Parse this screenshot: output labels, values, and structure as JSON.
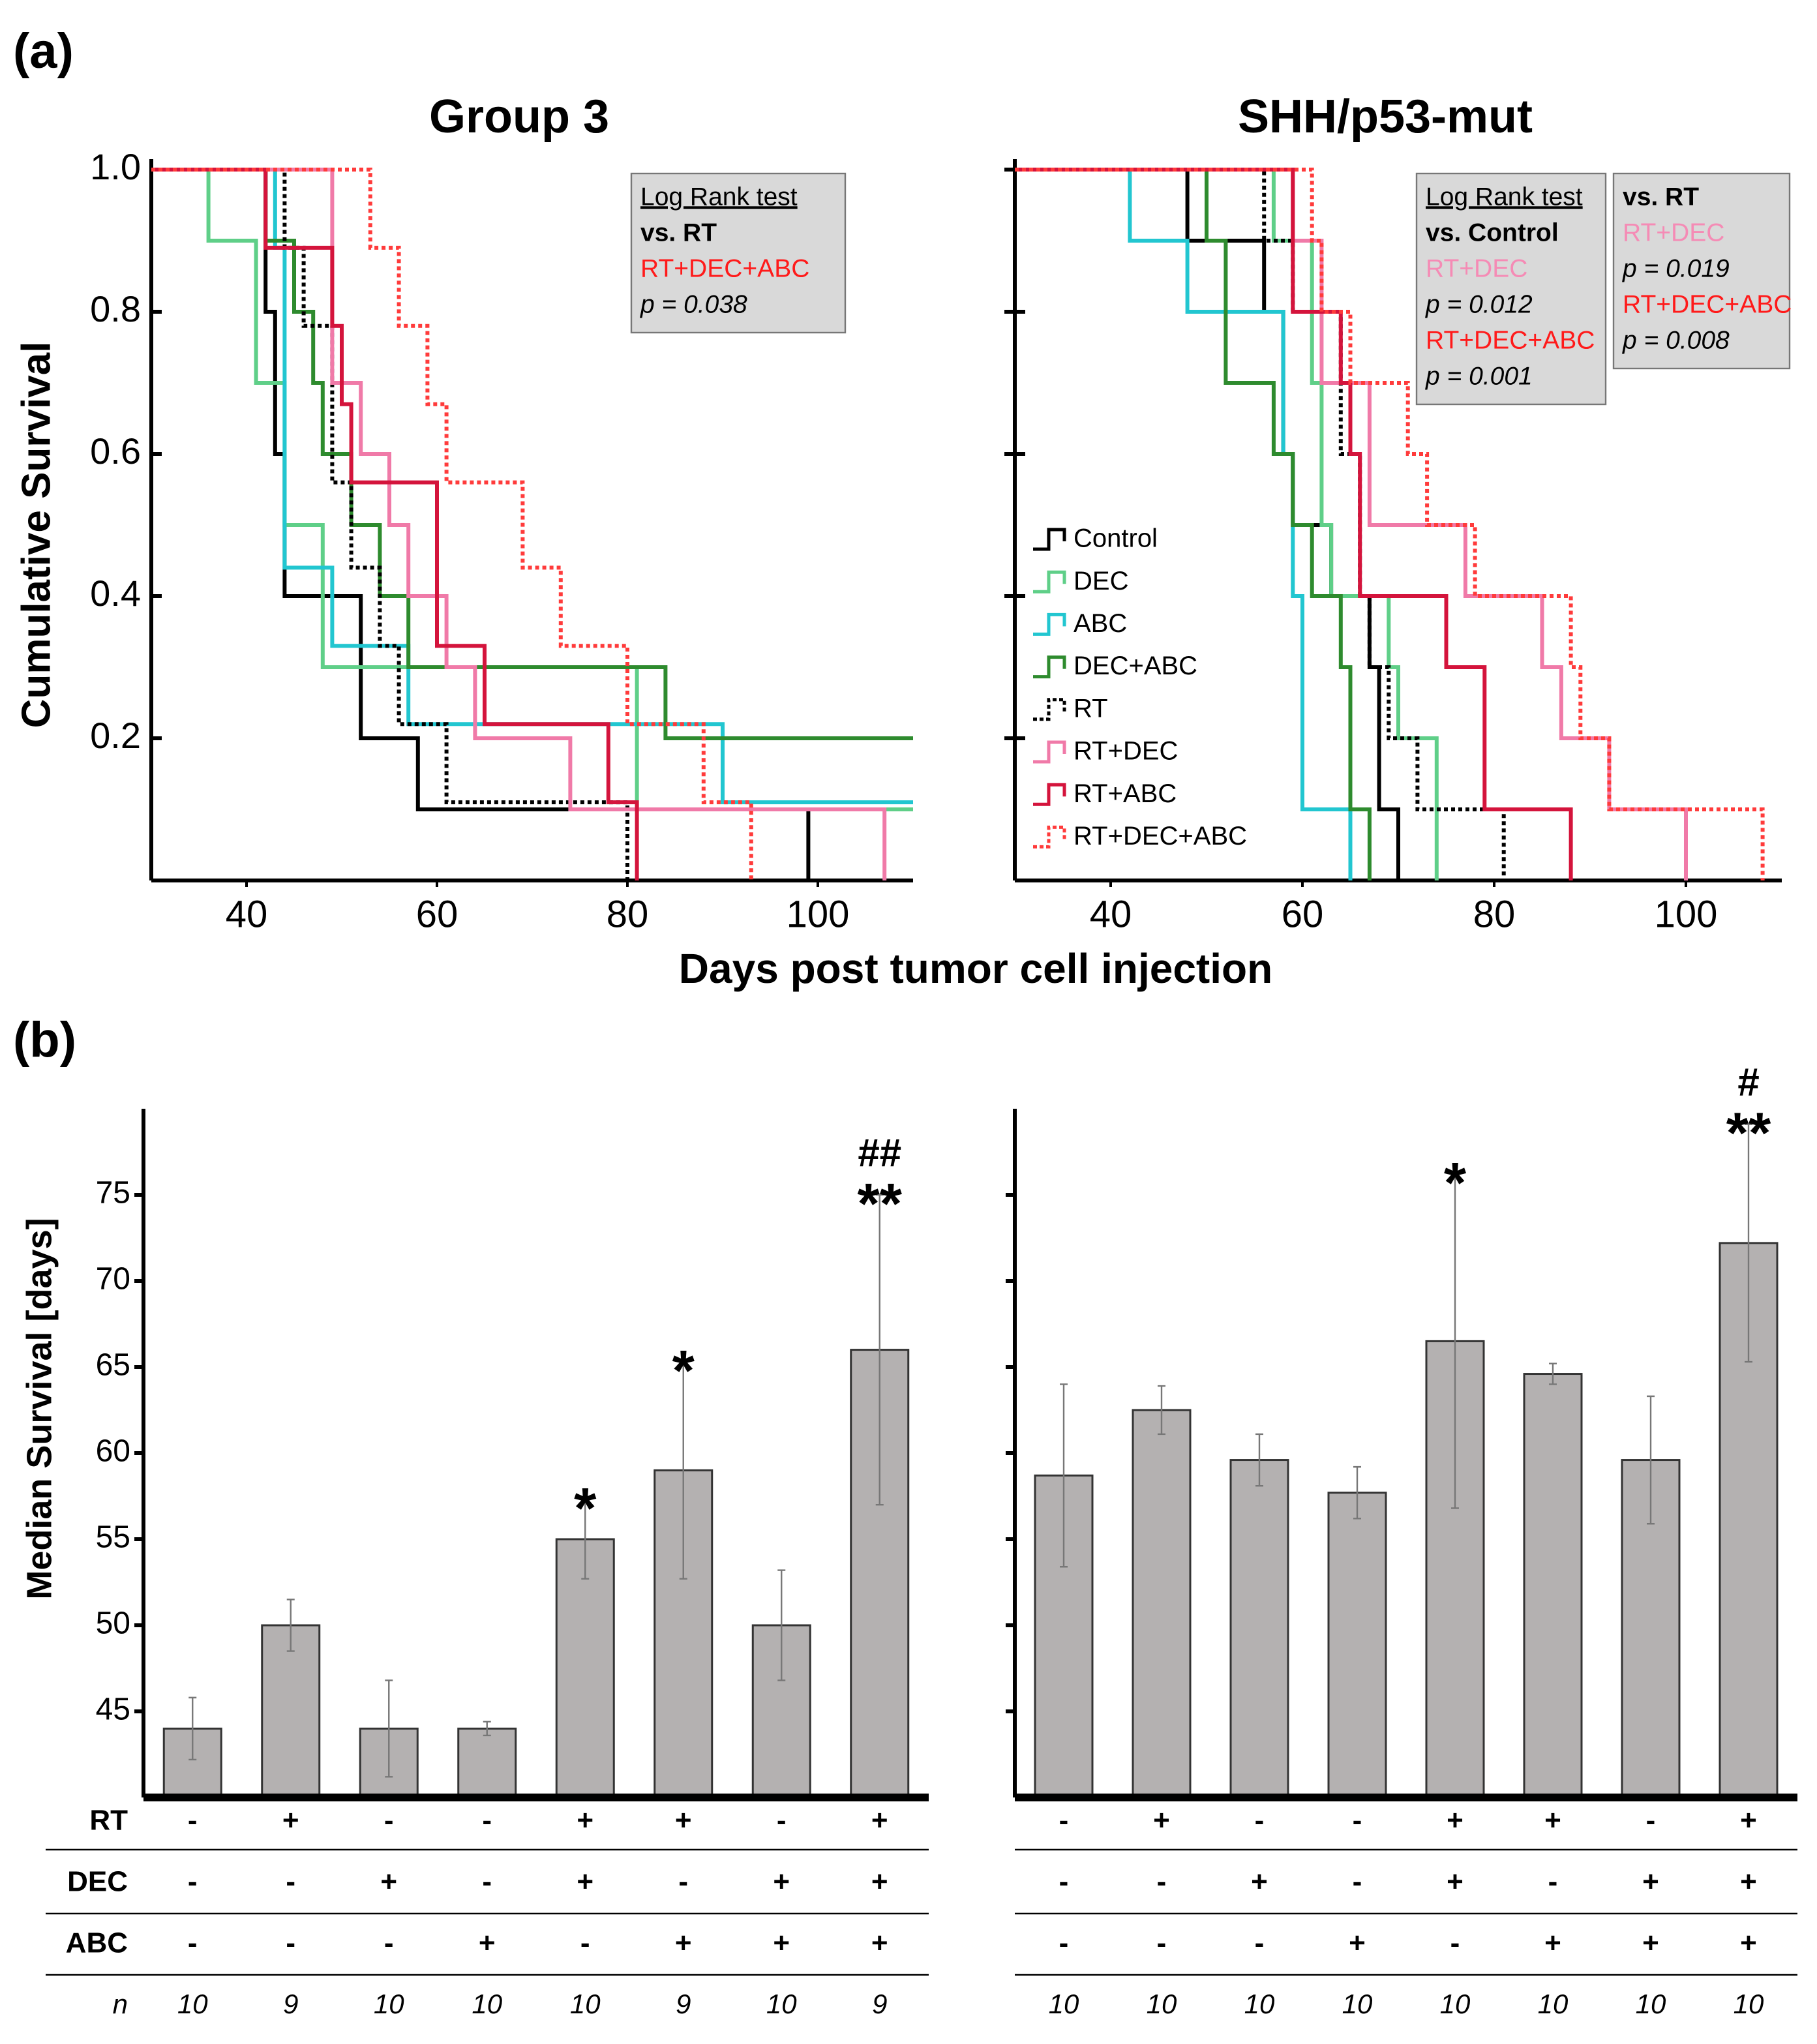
{
  "panel_labels": [
    "(a)",
    "(b)"
  ],
  "chart_data": [
    {
      "type": "line",
      "step": "post",
      "title": "Group 3",
      "ylabel": "Cumulative Survival",
      "xlabel": "Days post tumor cell injection",
      "xlim": [
        30,
        110
      ],
      "xticks": [
        40,
        60,
        80,
        100
      ],
      "ylim": [
        0,
        1
      ],
      "yticks": [
        0.2,
        0.4,
        0.6,
        0.8,
        {
          "value": 1,
          "label": "1.0"
        }
      ],
      "ytick_labels": true,
      "series": [
        {
          "color": "#000000",
          "dash": false,
          "x": [
            30,
            42,
            43,
            44,
            52,
            58,
            99
          ],
          "values": [
            1,
            0.8,
            0.6,
            0.4,
            0.2,
            0.1,
            0
          ]
        },
        {
          "color": "#5fcf88",
          "dash": false,
          "x": [
            30,
            36,
            41,
            44,
            48,
            81
          ],
          "values": [
            1,
            0.9,
            0.7,
            0.5,
            0.3,
            0.1
          ]
        },
        {
          "color": "#22c6d0",
          "dash": false,
          "x": [
            30,
            43,
            44,
            49,
            57,
            90
          ],
          "values": [
            1,
            0.89,
            0.44,
            0.33,
            0.22,
            0.11
          ]
        },
        {
          "color": "#2e8b2e",
          "dash": false,
          "x": [
            30,
            42,
            45,
            47,
            48,
            51,
            54,
            57,
            84
          ],
          "values": [
            1,
            0.9,
            0.8,
            0.7,
            0.6,
            0.5,
            0.4,
            0.3,
            0.2
          ]
        },
        {
          "color": "#000000",
          "dash": true,
          "x": [
            30,
            44,
            46,
            49,
            51,
            54,
            56,
            61,
            80
          ],
          "values": [
            1,
            0.89,
            0.78,
            0.56,
            0.44,
            0.33,
            0.22,
            0.11,
            0
          ]
        },
        {
          "color": "#f07aa8",
          "dash": false,
          "x": [
            30,
            49,
            52,
            55,
            57,
            61,
            64,
            74,
            107
          ],
          "values": [
            1,
            0.7,
            0.6,
            0.5,
            0.4,
            0.3,
            0.2,
            0.1,
            0
          ]
        },
        {
          "color": "#d4143c",
          "dash": false,
          "x": [
            30,
            42,
            49,
            50,
            51,
            60,
            65,
            78,
            81
          ],
          "values": [
            1,
            0.89,
            0.78,
            0.67,
            0.56,
            0.33,
            0.22,
            0.11,
            0
          ]
        },
        {
          "color": "#ff3b3b",
          "dash": true,
          "x": [
            30,
            53,
            56,
            59,
            61,
            69,
            73,
            80,
            88,
            93
          ],
          "values": [
            1,
            0.89,
            0.78,
            0.67,
            0.56,
            0.44,
            0.33,
            0.22,
            0.11,
            0
          ]
        }
      ],
      "annotations": [
        {
          "lines": [
            {
              "text": "Log Rank test",
              "style": "underline"
            },
            {
              "text": "vs. RT",
              "style": "bold"
            },
            {
              "text": "RT+DEC+ABC",
              "color": "#ff1a1a"
            },
            {
              "text": "p = 0.038",
              "style": "italic"
            }
          ]
        }
      ]
    },
    {
      "type": "line",
      "step": "post",
      "title": "SHH/p53-mut",
      "legend": "lower left",
      "xlim": [
        30,
        110
      ],
      "xticks": [
        40,
        60,
        80,
        100
      ],
      "ylim": [
        0,
        1
      ],
      "yticks": [
        0.2,
        0.4,
        0.6,
        0.8,
        1
      ],
      "ytick_labels": false,
      "series": [
        {
          "name": "Control",
          "color": "#000000",
          "dash": false,
          "x": [
            30,
            48,
            56,
            58,
            59,
            63,
            67,
            68,
            70
          ],
          "values": [
            1,
            0.9,
            0.8,
            0.6,
            0.5,
            0.4,
            0.3,
            0.1,
            0
          ]
        },
        {
          "name": "DEC",
          "color": "#5fcf88",
          "dash": false,
          "x": [
            30,
            57,
            61,
            62,
            63,
            69,
            70,
            74
          ],
          "values": [
            1,
            0.9,
            0.7,
            0.5,
            0.4,
            0.3,
            0.2,
            0
          ]
        },
        {
          "name": "ABC",
          "color": "#22c6d0",
          "dash": false,
          "x": [
            30,
            42,
            48,
            58,
            59,
            60,
            65
          ],
          "values": [
            1,
            0.9,
            0.8,
            0.6,
            0.4,
            0.1,
            0
          ]
        },
        {
          "name": "DEC+ABC",
          "color": "#2e8b2e",
          "dash": false,
          "x": [
            30,
            50,
            52,
            57,
            59,
            61,
            64,
            65,
            67
          ],
          "values": [
            1,
            0.9,
            0.7,
            0.6,
            0.5,
            0.4,
            0.3,
            0.1,
            0
          ]
        },
        {
          "name": "RT",
          "color": "#000000",
          "dash": true,
          "x": [
            30,
            56,
            59,
            64,
            66,
            67,
            69,
            72,
            81
          ],
          "values": [
            1,
            0.9,
            0.8,
            0.6,
            0.4,
            0.3,
            0.2,
            0.1,
            0
          ]
        },
        {
          "name": "RT+DEC",
          "color": "#f07aa8",
          "dash": false,
          "x": [
            30,
            59,
            62,
            67,
            77,
            85,
            87,
            92,
            100
          ],
          "values": [
            1,
            0.9,
            0.7,
            0.5,
            0.4,
            0.3,
            0.2,
            0.1,
            0
          ]
        },
        {
          "name": "RT+ABC",
          "color": "#d4143c",
          "dash": false,
          "x": [
            30,
            59,
            64,
            65,
            66,
            75,
            79,
            88
          ],
          "values": [
            1,
            0.8,
            0.7,
            0.6,
            0.4,
            0.3,
            0.1,
            0
          ]
        },
        {
          "name": "RT+DEC+ABC",
          "color": "#ff3b3b",
          "dash": true,
          "x": [
            30,
            61,
            62,
            65,
            71,
            73,
            78,
            88,
            89,
            92,
            108
          ],
          "values": [
            1,
            0.9,
            0.8,
            0.7,
            0.6,
            0.5,
            0.4,
            0.3,
            0.2,
            0.1,
            0
          ]
        }
      ],
      "annotations": [
        {
          "lines": [
            {
              "text": "Log Rank test",
              "style": "underline"
            },
            {
              "text": "vs. Control",
              "style": "bold"
            },
            {
              "text": "RT+DEC",
              "color": "#f58bb5"
            },
            {
              "text": "p = 0.012",
              "style": "italic"
            },
            {
              "text": "RT+DEC+ABC",
              "color": "#ff1a1a"
            },
            {
              "text": "p = 0.001",
              "style": "italic"
            }
          ]
        },
        {
          "lines": [
            {
              "text": "vs. RT",
              "style": "bold"
            },
            {
              "text": "RT+DEC",
              "color": "#f58bb5"
            },
            {
              "text": "p = 0.019",
              "style": "italic"
            },
            {
              "text": "RT+DEC+ABC",
              "color": "#ff1a1a"
            },
            {
              "text": "p = 0.008",
              "style": "italic"
            }
          ]
        }
      ]
    },
    {
      "type": "bar",
      "ylabel": "Median Survival [days]",
      "color": "#b4b1b1",
      "ylim": [
        40,
        80
      ],
      "yticks": [
        45,
        50,
        55,
        60,
        65,
        70,
        75
      ],
      "ytick_labels": true,
      "values": [
        44,
        50,
        44,
        44,
        55,
        59,
        50,
        66
      ],
      "errors": [
        1.8,
        1.5,
        2.8,
        0.4,
        2.3,
        6.3,
        3.2,
        9
      ],
      "sig": [
        null,
        null,
        null,
        null,
        "*",
        "*",
        null,
        "**"
      ],
      "sig2": [
        null,
        null,
        null,
        null,
        null,
        null,
        null,
        "##"
      ],
      "rows": [
        {
          "label": "RT",
          "cells": [
            "-",
            "+",
            "-",
            "-",
            "+",
            "+",
            "-",
            "+"
          ]
        },
        {
          "label": "DEC",
          "cells": [
            "-",
            "-",
            "+",
            "-",
            "+",
            "-",
            "+",
            "+"
          ]
        },
        {
          "label": "ABC",
          "cells": [
            "-",
            "-",
            "-",
            "+",
            "-",
            "+",
            "+",
            "+"
          ]
        }
      ],
      "n_label": "n",
      "n": [
        10,
        9,
        10,
        10,
        10,
        9,
        10,
        9
      ]
    },
    {
      "type": "bar",
      "color": "#b4b1b1",
      "ylim": [
        40,
        80
      ],
      "yticks": [
        45,
        50,
        55,
        60,
        65,
        70,
        75
      ],
      "ytick_labels": false,
      "values": [
        58.7,
        62.5,
        59.6,
        57.7,
        66.5,
        64.6,
        59.6,
        72.2
      ],
      "errors": [
        5.3,
        1.4,
        1.5,
        1.5,
        9.7,
        0.6,
        3.7,
        6.9
      ],
      "sig": [
        null,
        null,
        null,
        null,
        "*",
        null,
        null,
        "**"
      ],
      "sig2": [
        null,
        null,
        null,
        null,
        null,
        null,
        null,
        "#"
      ],
      "rows": [
        {
          "cells": [
            "-",
            "+",
            "-",
            "-",
            "+",
            "+",
            "-",
            "+"
          ]
        },
        {
          "cells": [
            "-",
            "-",
            "+",
            "-",
            "+",
            "-",
            "+",
            "+"
          ]
        },
        {
          "cells": [
            "-",
            "-",
            "-",
            "+",
            "-",
            "+",
            "+",
            "+"
          ]
        }
      ],
      "n": [
        10,
        10,
        10,
        10,
        10,
        10,
        10,
        10
      ]
    }
  ]
}
